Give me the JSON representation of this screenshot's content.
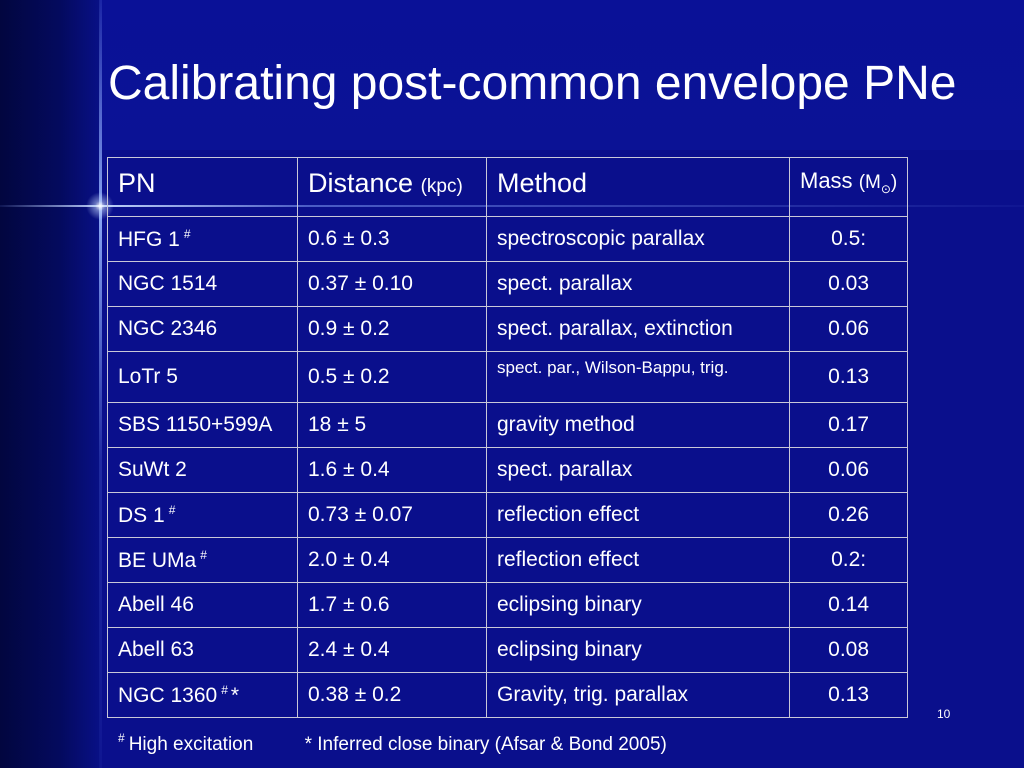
{
  "slide": {
    "title": "Calibrating post-common envelope PNe",
    "page_number": "10"
  },
  "table": {
    "headers": {
      "pn": "PN",
      "distance": "Distance",
      "distance_unit": "(kpc)",
      "method": "Method",
      "mass": "Mass",
      "mass_unit_open": "(M",
      "mass_unit_sub": "⊙",
      "mass_unit_close": ")"
    },
    "rows": [
      {
        "pn": "HFG 1",
        "mark": "#",
        "distance": "0.6 ± 0.3",
        "method": "spectroscopic parallax",
        "mass": "0.5:"
      },
      {
        "pn": "NGC 1514",
        "mark": "",
        "distance": "0.37 ± 0.10",
        "method": "spect. parallax",
        "mass": "0.03"
      },
      {
        "pn": "NGC 2346",
        "mark": "",
        "distance": "0.9 ± 0.2",
        "method": "spect. parallax, extinction",
        "mass": "0.06"
      },
      {
        "pn": "LoTr 5",
        "mark": "",
        "distance": "0.5 ± 0.2",
        "method": "spect. par., Wilson-Bappu, trig.",
        "mass": "0.13"
      },
      {
        "pn": "SBS 1150+599A",
        "mark": "",
        "distance": "18 ± 5",
        "method": "gravity method",
        "mass": "0.17"
      },
      {
        "pn": "SuWt 2",
        "mark": "",
        "distance": "1.6 ± 0.4",
        "method": "spect. parallax",
        "mass": "0.06"
      },
      {
        "pn": "DS 1",
        "mark": "#",
        "distance": "0.73 ± 0.07",
        "method": "reflection effect",
        "mass": "0.26"
      },
      {
        "pn": "BE UMa",
        "mark": "#",
        "distance": "2.0 ± 0.4",
        "method": "reflection effect",
        "mass": "0.2:"
      },
      {
        "pn": "Abell 46",
        "mark": "",
        "distance": "1.7 ± 0.6",
        "method": "eclipsing binary",
        "mass": "0.14"
      },
      {
        "pn": "Abell 63",
        "mark": "",
        "distance": "2.4 ± 0.4",
        "method": "eclipsing binary",
        "mass": "0.08"
      },
      {
        "pn": "NGC 1360",
        "mark": "#",
        "star": "*",
        "distance": "0.38 ± 0.2",
        "method": "Gravity, trig. parallax",
        "mass": "0.13"
      }
    ]
  },
  "footnotes": {
    "hash_symbol": "#",
    "hash_text": "High excitation",
    "star_text": "* Inferred close binary (Afsar & Bond 2005)"
  },
  "colors": {
    "background": "#0a0f8c",
    "text": "#ffffff",
    "grid": "#c8c8d8"
  }
}
